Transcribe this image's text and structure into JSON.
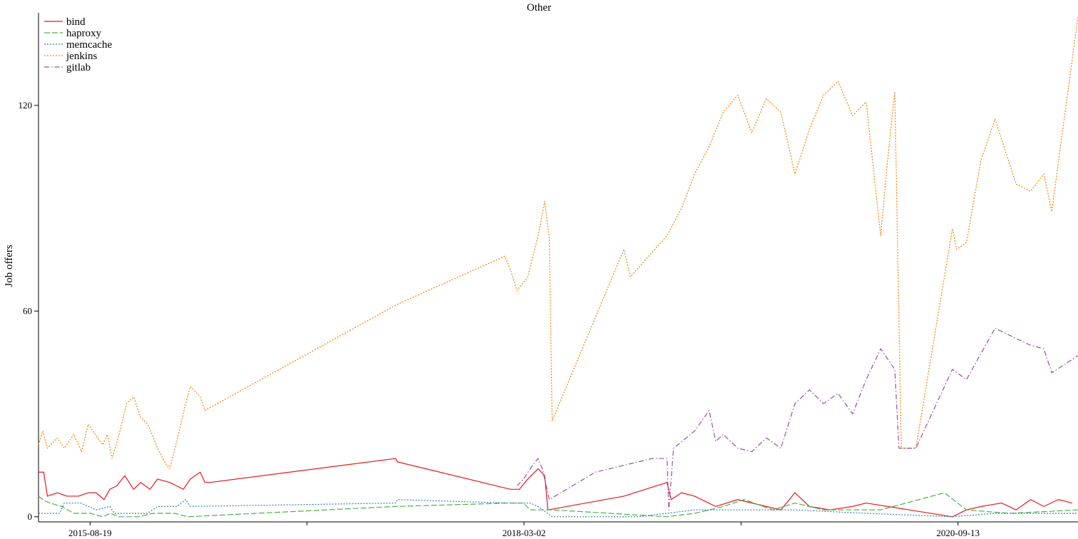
{
  "chart_data": {
    "type": "line",
    "title": "Other",
    "xlabel": "",
    "ylabel": "Job offers",
    "x_tick_labels": [
      "2015-08-19",
      "2018-03-02",
      "2020-09-13"
    ],
    "y_tick_labels": [
      "0",
      "60",
      "120"
    ],
    "xlim": [
      "2015-05-01",
      "2021-05-27"
    ],
    "ylim": [
      -1.5,
      147
    ],
    "grid": false,
    "legend_position": "top-left",
    "series": [
      {
        "name": "bind",
        "color": "#e41a1c",
        "dash": "solid",
        "points": [
          [
            "2015-05-01",
            13
          ],
          [
            "2015-05-12",
            13
          ],
          [
            "2015-05-20",
            6
          ],
          [
            "2015-06-10",
            7
          ],
          [
            "2015-07-01",
            6
          ],
          [
            "2015-07-25",
            6
          ],
          [
            "2015-08-15",
            7
          ],
          [
            "2015-09-01",
            7
          ],
          [
            "2015-09-18",
            5
          ],
          [
            "2015-09-30",
            8
          ],
          [
            "2015-10-15",
            9
          ],
          [
            "2015-11-01",
            12
          ],
          [
            "2015-11-20",
            8
          ],
          [
            "2015-12-05",
            10
          ],
          [
            "2015-12-25",
            8
          ],
          [
            "2016-01-10",
            11
          ],
          [
            "2016-02-05",
            10
          ],
          [
            "2016-03-05",
            8
          ],
          [
            "2016-03-20",
            11
          ],
          [
            "2016-04-10",
            13
          ],
          [
            "2016-04-20",
            10
          ],
          [
            "2016-05-01",
            10
          ],
          [
            "2017-06-01",
            17
          ],
          [
            "2017-06-05",
            16
          ],
          [
            "2018-02-01",
            8
          ],
          [
            "2018-02-20",
            8
          ],
          [
            "2018-03-10",
            11
          ],
          [
            "2018-04-01",
            14
          ],
          [
            "2018-04-15",
            12
          ],
          [
            "2018-04-22",
            2
          ],
          [
            "2018-10-01",
            6
          ],
          [
            "2019-01-01",
            10
          ],
          [
            "2019-01-10",
            5
          ],
          [
            "2019-02-01",
            7
          ],
          [
            "2019-03-01",
            6
          ],
          [
            "2019-04-15",
            3
          ],
          [
            "2019-06-01",
            5
          ],
          [
            "2019-08-01",
            3
          ],
          [
            "2019-09-01",
            2
          ],
          [
            "2019-10-01",
            7
          ],
          [
            "2019-11-01",
            3
          ],
          [
            "2019-12-15",
            2
          ],
          [
            "2020-02-01",
            3
          ],
          [
            "2020-03-01",
            4
          ],
          [
            "2020-09-01",
            0
          ],
          [
            "2020-10-01",
            2
          ],
          [
            "2020-11-01",
            3
          ],
          [
            "2020-12-15",
            4
          ],
          [
            "2021-01-15",
            2
          ],
          [
            "2021-02-15",
            5
          ],
          [
            "2021-03-15",
            3
          ],
          [
            "2021-04-15",
            5
          ],
          [
            "2021-05-15",
            4
          ]
        ]
      },
      {
        "name": "haproxy",
        "color": "#4daf4a",
        "dash": "dashed",
        "points": [
          [
            "2015-05-01",
            6
          ],
          [
            "2015-05-10",
            5
          ],
          [
            "2015-05-25",
            4
          ],
          [
            "2015-06-20",
            3
          ],
          [
            "2015-07-15",
            1
          ],
          [
            "2015-08-20",
            1
          ],
          [
            "2015-09-15",
            0
          ],
          [
            "2015-10-01",
            1
          ],
          [
            "2015-10-20",
            0
          ],
          [
            "2015-12-01",
            0
          ],
          [
            "2016-01-01",
            1
          ],
          [
            "2016-02-15",
            1
          ],
          [
            "2016-03-15",
            0
          ],
          [
            "2017-06-01",
            3
          ],
          [
            "2018-02-01",
            4
          ],
          [
            "2018-03-01",
            4
          ],
          [
            "2018-03-15",
            2
          ],
          [
            "2018-05-01",
            2
          ],
          [
            "2018-09-01",
            1
          ],
          [
            "2019-01-01",
            0
          ],
          [
            "2019-03-01",
            1
          ],
          [
            "2019-05-01",
            3
          ],
          [
            "2019-06-15",
            5
          ],
          [
            "2019-08-15",
            2
          ],
          [
            "2019-10-01",
            4
          ],
          [
            "2019-12-01",
            2
          ],
          [
            "2020-04-01",
            2
          ],
          [
            "2020-08-15",
            7
          ],
          [
            "2020-10-01",
            2
          ],
          [
            "2021-01-01",
            1
          ],
          [
            "2021-05-27",
            2
          ]
        ]
      },
      {
        "name": "memcache",
        "color": "#377eb8",
        "dash": "dotted",
        "points": [
          [
            "2015-05-01",
            1
          ],
          [
            "2015-06-15",
            1
          ],
          [
            "2015-06-25",
            4
          ],
          [
            "2015-07-30",
            4
          ],
          [
            "2015-09-01",
            2
          ],
          [
            "2015-09-30",
            3
          ],
          [
            "2015-10-10",
            1
          ],
          [
            "2015-11-15",
            1
          ],
          [
            "2015-12-20",
            1
          ],
          [
            "2016-01-10",
            3
          ],
          [
            "2016-02-20",
            3
          ],
          [
            "2016-03-10",
            5
          ],
          [
            "2016-03-20",
            3
          ],
          [
            "2017-06-01",
            4
          ],
          [
            "2017-06-05",
            5
          ],
          [
            "2018-02-01",
            4
          ],
          [
            "2018-03-15",
            4
          ],
          [
            "2018-04-01",
            3
          ],
          [
            "2018-05-01",
            0
          ],
          [
            "2018-11-01",
            0
          ],
          [
            "2019-03-01",
            2
          ],
          [
            "2019-06-01",
            2
          ],
          [
            "2019-10-01",
            2
          ],
          [
            "2020-03-01",
            1
          ],
          [
            "2020-09-01",
            0
          ],
          [
            "2020-12-01",
            1
          ],
          [
            "2021-05-27",
            1
          ]
        ]
      },
      {
        "name": "jenkins",
        "color": "#ff7f00",
        "dash": "dotted",
        "points": [
          [
            "2015-05-01",
            21
          ],
          [
            "2015-05-10",
            25
          ],
          [
            "2015-05-20",
            20
          ],
          [
            "2015-06-10",
            23
          ],
          [
            "2015-06-25",
            20
          ],
          [
            "2015-07-15",
            24
          ],
          [
            "2015-08-01",
            19
          ],
          [
            "2015-08-15",
            27
          ],
          [
            "2015-08-30",
            24
          ],
          [
            "2015-09-15",
            21
          ],
          [
            "2015-09-25",
            24
          ],
          [
            "2015-10-05",
            17
          ],
          [
            "2015-10-20",
            24
          ],
          [
            "2015-11-05",
            33
          ],
          [
            "2015-11-20",
            35
          ],
          [
            "2015-12-05",
            29
          ],
          [
            "2015-12-20",
            27
          ],
          [
            "2016-01-10",
            20
          ],
          [
            "2016-01-25",
            16
          ],
          [
            "2016-02-05",
            14
          ],
          [
            "2016-02-20",
            22
          ],
          [
            "2016-03-10",
            33
          ],
          [
            "2016-03-20",
            38
          ],
          [
            "2016-04-10",
            35
          ],
          [
            "2016-04-20",
            31
          ],
          [
            "2017-06-05",
            62
          ],
          [
            "2018-01-20",
            76
          ],
          [
            "2018-02-01",
            72
          ],
          [
            "2018-02-15",
            66
          ],
          [
            "2018-03-10",
            70
          ],
          [
            "2018-04-01",
            82
          ],
          [
            "2018-04-15",
            92
          ],
          [
            "2018-04-25",
            81
          ],
          [
            "2018-05-01",
            28
          ],
          [
            "2018-10-01",
            78
          ],
          [
            "2018-10-15",
            70
          ],
          [
            "2019-01-01",
            82
          ],
          [
            "2019-02-01",
            90
          ],
          [
            "2019-03-01",
            100
          ],
          [
            "2019-04-01",
            108
          ],
          [
            "2019-05-01",
            118
          ],
          [
            "2019-06-01",
            123
          ],
          [
            "2019-07-01",
            112
          ],
          [
            "2019-08-01",
            122
          ],
          [
            "2019-09-01",
            118
          ],
          [
            "2019-10-01",
            100
          ],
          [
            "2019-11-01",
            113
          ],
          [
            "2019-12-01",
            123
          ],
          [
            "2020-01-01",
            127
          ],
          [
            "2020-02-01",
            117
          ],
          [
            "2020-03-01",
            121
          ],
          [
            "2020-04-01",
            82
          ],
          [
            "2020-04-15",
            103
          ],
          [
            "2020-05-01",
            124
          ],
          [
            "2020-05-15",
            20
          ],
          [
            "2020-06-15",
            20
          ],
          [
            "2020-09-01",
            84
          ],
          [
            "2020-09-10",
            78
          ],
          [
            "2020-10-01",
            80
          ],
          [
            "2020-11-01",
            104
          ],
          [
            "2020-12-01",
            116
          ],
          [
            "2021-01-15",
            97
          ],
          [
            "2021-02-15",
            95
          ],
          [
            "2021-03-15",
            100
          ],
          [
            "2021-04-01",
            89
          ],
          [
            "2021-05-27",
            146
          ]
        ]
      },
      {
        "name": "gitlab",
        "color": "#984ea3",
        "dash": "dashdot",
        "points": [
          [
            "2018-02-15",
            9
          ],
          [
            "2018-03-01",
            11
          ],
          [
            "2018-03-20",
            15
          ],
          [
            "2018-04-01",
            17
          ],
          [
            "2018-04-10",
            14
          ],
          [
            "2018-04-25",
            5
          ],
          [
            "2018-08-01",
            13
          ],
          [
            "2018-12-01",
            17
          ],
          [
            "2019-01-01",
            17
          ],
          [
            "2019-01-05",
            2
          ],
          [
            "2019-01-15",
            20
          ],
          [
            "2019-03-01",
            25
          ],
          [
            "2019-04-01",
            31
          ],
          [
            "2019-04-15",
            22
          ],
          [
            "2019-05-01",
            24
          ],
          [
            "2019-06-01",
            20
          ],
          [
            "2019-07-01",
            19
          ],
          [
            "2019-08-01",
            23
          ],
          [
            "2019-09-01",
            20
          ],
          [
            "2019-10-01",
            33
          ],
          [
            "2019-11-01",
            37
          ],
          [
            "2019-12-01",
            33
          ],
          [
            "2020-01-01",
            36
          ],
          [
            "2020-02-01",
            30
          ],
          [
            "2020-03-01",
            40
          ],
          [
            "2020-04-01",
            49
          ],
          [
            "2020-05-01",
            43
          ],
          [
            "2020-05-10",
            20
          ],
          [
            "2020-06-15",
            20
          ],
          [
            "2020-09-01",
            43
          ],
          [
            "2020-10-01",
            40
          ],
          [
            "2020-12-01",
            55
          ],
          [
            "2021-01-15",
            52
          ],
          [
            "2021-02-15",
            50
          ],
          [
            "2021-03-15",
            49
          ],
          [
            "2021-04-01",
            42
          ],
          [
            "2021-05-27",
            47
          ]
        ]
      }
    ]
  }
}
